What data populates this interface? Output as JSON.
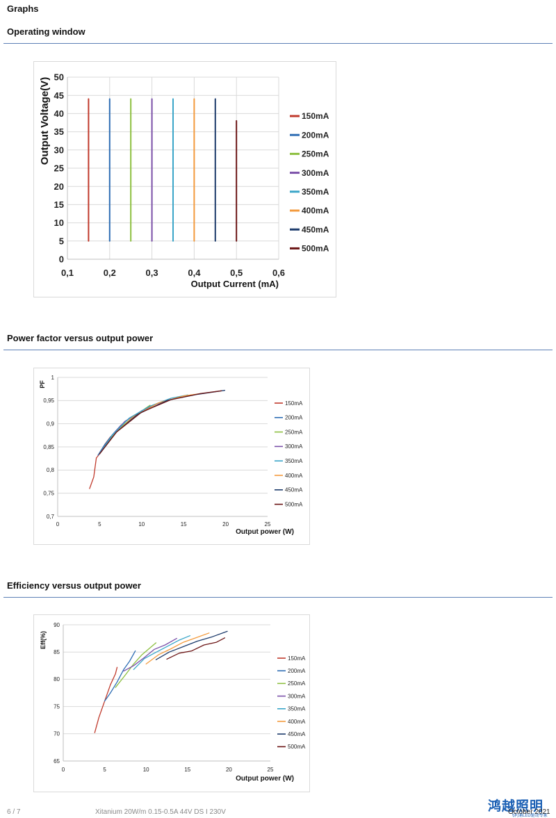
{
  "page": {
    "heading": "Graphs",
    "footer_page": "6 / 7",
    "footer_doc": "Xitanium 20W/m 0.15-0.5A 44V DS I 230V",
    "footer_date": "October 2021",
    "logo_main": "鸿越照明",
    "logo_sub": "飞利浦LED驱动专家"
  },
  "sections": [
    {
      "title": "Operating window"
    },
    {
      "title": "Power factor versus output power"
    },
    {
      "title": "Efficiency versus output power"
    }
  ],
  "series_colors": [
    "#c0392b",
    "#2e6db4",
    "#8cbf3f",
    "#7a4fa8",
    "#3aa5c8",
    "#f39a3c",
    "#1c3a6b",
    "#6b1414"
  ],
  "chart_data": [
    {
      "type": "line",
      "title": "",
      "xlabel": "Output Current (mA)",
      "ylabel": "Output Voltage(V)",
      "xlim": [
        0.1,
        0.6
      ],
      "ylim": [
        0,
        50
      ],
      "xticks": [
        "0,1",
        "0,2",
        "0,3",
        "0,4",
        "0,5",
        "0,6"
      ],
      "yticks": [
        "0",
        "5",
        "10",
        "15",
        "20",
        "25",
        "30",
        "35",
        "40",
        "45",
        "50"
      ],
      "grid": true,
      "legend": "right",
      "series": [
        {
          "name": "150mA",
          "x": [
            0.15,
            0.15
          ],
          "y": [
            5,
            44
          ]
        },
        {
          "name": "200mA",
          "x": [
            0.2,
            0.2
          ],
          "y": [
            5,
            44
          ]
        },
        {
          "name": "250mA",
          "x": [
            0.25,
            0.25
          ],
          "y": [
            5,
            44
          ]
        },
        {
          "name": "300mA",
          "x": [
            0.3,
            0.3
          ],
          "y": [
            5,
            44
          ]
        },
        {
          "name": "350mA",
          "x": [
            0.35,
            0.35
          ],
          "y": [
            5,
            44
          ]
        },
        {
          "name": "400mA",
          "x": [
            0.4,
            0.4
          ],
          "y": [
            5,
            44
          ]
        },
        {
          "name": "450mA",
          "x": [
            0.45,
            0.45
          ],
          "y": [
            5,
            44
          ]
        },
        {
          "name": "500mA",
          "x": [
            0.5,
            0.5
          ],
          "y": [
            5,
            38
          ]
        }
      ]
    },
    {
      "type": "line",
      "title": "",
      "xlabel": "Output power (W)",
      "ylabel": "PF",
      "xlim": [
        0,
        25
      ],
      "ylim": [
        0.7,
        1
      ],
      "xticks": [
        "0",
        "5",
        "10",
        "15",
        "20",
        "25"
      ],
      "yticks": [
        "0,7",
        "0,75",
        "0,8",
        "0,85",
        "0,9",
        "0,95",
        "1"
      ],
      "grid": true,
      "legend": "right",
      "series": [
        {
          "name": "150mA",
          "x": [
            3.8,
            4.3,
            4.6,
            5.0,
            5.6,
            6.3
          ],
          "y": [
            0.76,
            0.785,
            0.826,
            0.835,
            0.855,
            0.872
          ]
        },
        {
          "name": "200mA",
          "x": [
            4.8,
            5.5,
            6.5,
            7.5,
            8.8
          ],
          "y": [
            0.832,
            0.852,
            0.876,
            0.896,
            0.915
          ]
        },
        {
          "name": "250mA",
          "x": [
            5.0,
            6.0,
            7.5,
            9.0,
            11.0
          ],
          "y": [
            0.835,
            0.862,
            0.892,
            0.915,
            0.94
          ]
        },
        {
          "name": "300mA",
          "x": [
            5.0,
            6.5,
            8.0,
            10.0,
            12.0,
            13.0
          ],
          "y": [
            0.835,
            0.875,
            0.905,
            0.928,
            0.944,
            0.951
          ]
        },
        {
          "name": "350mA",
          "x": [
            5.0,
            6.5,
            8.5,
            11.0,
            13.5,
            15.5
          ],
          "y": [
            0.835,
            0.875,
            0.912,
            0.938,
            0.955,
            0.962
          ]
        },
        {
          "name": "400mA",
          "x": [
            5.0,
            7.0,
            9.0,
            12.0,
            15.0,
            17.5
          ],
          "y": [
            0.835,
            0.882,
            0.915,
            0.945,
            0.96,
            0.966
          ]
        },
        {
          "name": "450mA",
          "x": [
            5.0,
            7.0,
            9.5,
            13.0,
            16.5,
            19.9
          ],
          "y": [
            0.835,
            0.882,
            0.92,
            0.95,
            0.963,
            0.972
          ]
        },
        {
          "name": "500mA",
          "x": [
            5.0,
            7.0,
            10.0,
            13.5,
            17.0,
            19.5
          ],
          "y": [
            0.835,
            0.882,
            0.925,
            0.952,
            0.965,
            0.971
          ]
        }
      ]
    },
    {
      "type": "line",
      "title": "",
      "xlabel": "Output power (W)",
      "ylabel": "Eff(%)",
      "xlim": [
        0,
        25
      ],
      "ylim": [
        65,
        90
      ],
      "xticks": [
        "0",
        "5",
        "10",
        "15",
        "20",
        "25"
      ],
      "yticks": [
        "65",
        "70",
        "75",
        "80",
        "85",
        "90"
      ],
      "grid": true,
      "legend": "right",
      "series": [
        {
          "name": "150mA",
          "x": [
            3.8,
            4.3,
            5.0,
            5.7,
            6.3,
            6.5
          ],
          "y": [
            70.2,
            73.0,
            76.0,
            79.0,
            81.0,
            82.2
          ]
        },
        {
          "name": "200mA",
          "x": [
            5.0,
            5.7,
            6.5,
            7.3,
            8.0,
            8.7
          ],
          "y": [
            76.0,
            77.5,
            79.5,
            81.8,
            83.3,
            85.2
          ]
        },
        {
          "name": "250mA",
          "x": [
            6.3,
            7.5,
            8.5,
            9.5,
            10.5,
            11.2
          ],
          "y": [
            78.5,
            80.8,
            82.8,
            84.5,
            85.8,
            86.7
          ]
        },
        {
          "name": "300mA",
          "x": [
            7.3,
            8.5,
            9.8,
            11.0,
            12.3,
            13.7
          ],
          "y": [
            81.5,
            82.5,
            84.0,
            85.5,
            86.3,
            87.5
          ]
        },
        {
          "name": "350mA",
          "x": [
            8.5,
            9.8,
            11.0,
            12.5,
            14.0,
            15.3
          ],
          "y": [
            81.8,
            83.8,
            84.8,
            86.0,
            87.2,
            88.0
          ]
        },
        {
          "name": "400mA",
          "x": [
            10.0,
            11.5,
            13.0,
            14.5,
            16.0,
            17.6
          ],
          "y": [
            82.8,
            84.5,
            85.6,
            86.8,
            87.6,
            88.5
          ]
        },
        {
          "name": "450mA",
          "x": [
            11.2,
            12.8,
            14.5,
            16.2,
            18.0,
            19.8
          ],
          "y": [
            83.6,
            85.0,
            86.0,
            87.0,
            87.8,
            88.8
          ]
        },
        {
          "name": "500mA",
          "x": [
            12.5,
            14.0,
            15.5,
            17.0,
            18.5,
            19.5
          ],
          "y": [
            83.7,
            84.8,
            85.2,
            86.3,
            86.8,
            87.6
          ]
        }
      ]
    }
  ]
}
